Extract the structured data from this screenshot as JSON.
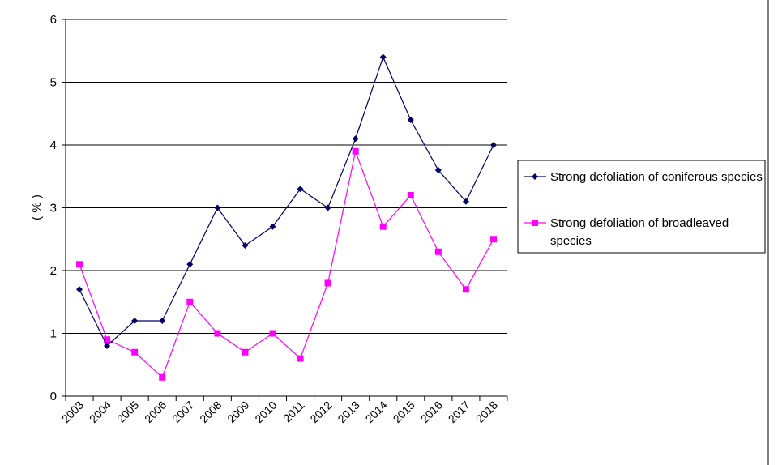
{
  "chart_data": {
    "type": "line",
    "categories": [
      "2003",
      "2004",
      "2005",
      "2006",
      "2007",
      "2008",
      "2009",
      "2010",
      "2011",
      "2012",
      "2013",
      "2014",
      "2015",
      "2016",
      "2017",
      "2018"
    ],
    "series": [
      {
        "name": "Strong defoliation of coniferous species",
        "color": "#000066",
        "marker": "diamond",
        "values": [
          1.7,
          0.8,
          1.2,
          1.2,
          2.1,
          3.0,
          2.4,
          2.7,
          3.3,
          3.0,
          4.1,
          5.4,
          4.4,
          3.6,
          3.1,
          4.0
        ]
      },
      {
        "name": "Strong defoliation of broadleaved species",
        "color": "#ff00ff",
        "marker": "square",
        "values": [
          2.1,
          0.9,
          0.7,
          0.3,
          1.5,
          1.0,
          0.7,
          1.0,
          0.6,
          1.8,
          3.9,
          2.7,
          3.2,
          2.3,
          1.7,
          2.5
        ]
      }
    ],
    "yticks": [
      "0",
      "1",
      "2",
      "3",
      "4",
      "5",
      "6"
    ],
    "ylim": [
      0,
      6
    ],
    "ylabel": "( % )",
    "grid": true,
    "legend_position": "right"
  }
}
